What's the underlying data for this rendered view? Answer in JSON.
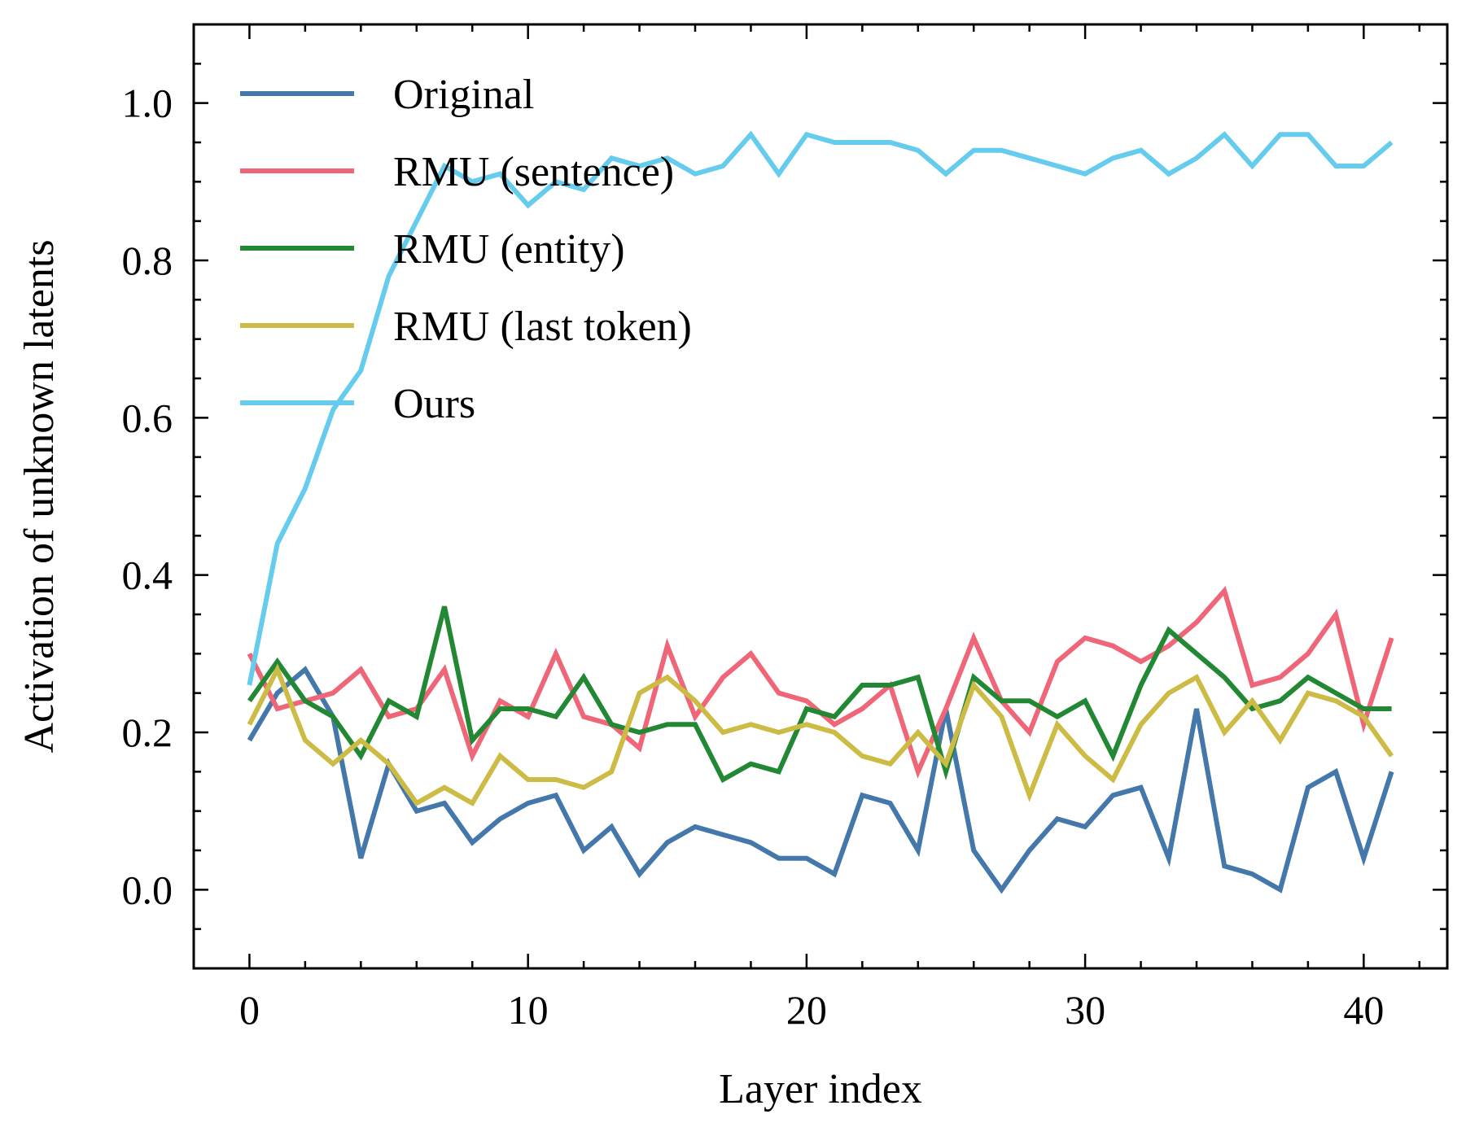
{
  "chart_data": {
    "type": "line",
    "title": "",
    "xlabel": "Layer index",
    "ylabel": "Activation of unknown latents",
    "xlim": [
      -2,
      43
    ],
    "ylim": [
      -0.1,
      1.1
    ],
    "x_ticks": [
      0,
      10,
      20,
      30,
      40
    ],
    "x_tick_labels": [
      "0",
      "10",
      "20",
      "30",
      "40"
    ],
    "y_ticks": [
      0.0,
      0.2,
      0.4,
      0.6,
      0.8,
      1.0
    ],
    "y_tick_labels": [
      "0.0",
      "0.2",
      "0.4",
      "0.6",
      "0.8",
      "1.0"
    ],
    "x_minor_step": 2,
    "y_minor_step": 0.05,
    "grid": false,
    "legend_position": "top-left",
    "x": [
      0,
      1,
      2,
      3,
      4,
      5,
      6,
      7,
      8,
      9,
      10,
      11,
      12,
      13,
      14,
      15,
      16,
      17,
      18,
      19,
      20,
      21,
      22,
      23,
      24,
      25,
      26,
      27,
      28,
      29,
      30,
      31,
      32,
      33,
      34,
      35,
      36,
      37,
      38,
      39,
      40,
      41
    ],
    "series": [
      {
        "name": "Original",
        "color": "#4477aa",
        "values": [
          0.19,
          0.25,
          0.28,
          0.22,
          0.04,
          0.16,
          0.1,
          0.11,
          0.06,
          0.09,
          0.11,
          0.12,
          0.05,
          0.08,
          0.02,
          0.06,
          0.08,
          0.07,
          0.06,
          0.04,
          0.04,
          0.02,
          0.12,
          0.11,
          0.05,
          0.23,
          0.05,
          0.0,
          0.05,
          0.09,
          0.08,
          0.12,
          0.13,
          0.04,
          0.23,
          0.03,
          0.02,
          0.0,
          0.13,
          0.15,
          0.04,
          0.15
        ]
      },
      {
        "name": "RMU (sentence)",
        "color": "#ee6677",
        "values": [
          0.3,
          0.23,
          0.24,
          0.25,
          0.28,
          0.22,
          0.23,
          0.28,
          0.17,
          0.24,
          0.22,
          0.3,
          0.22,
          0.21,
          0.18,
          0.31,
          0.22,
          0.27,
          0.3,
          0.25,
          0.24,
          0.21,
          0.23,
          0.26,
          0.15,
          0.23,
          0.32,
          0.24,
          0.2,
          0.29,
          0.32,
          0.31,
          0.29,
          0.31,
          0.34,
          0.38,
          0.26,
          0.27,
          0.3,
          0.35,
          0.21,
          0.32
        ]
      },
      {
        "name": "RMU (entity)",
        "color": "#228833",
        "values": [
          0.24,
          0.29,
          0.24,
          0.22,
          0.17,
          0.24,
          0.22,
          0.36,
          0.19,
          0.23,
          0.23,
          0.22,
          0.27,
          0.21,
          0.2,
          0.21,
          0.21,
          0.14,
          0.16,
          0.15,
          0.23,
          0.22,
          0.26,
          0.26,
          0.27,
          0.15,
          0.27,
          0.24,
          0.24,
          0.22,
          0.24,
          0.17,
          0.26,
          0.33,
          0.3,
          0.27,
          0.23,
          0.24,
          0.27,
          0.25,
          0.23,
          0.23
        ]
      },
      {
        "name": "RMU (last token)",
        "color": "#ccbb44",
        "values": [
          0.21,
          0.28,
          0.19,
          0.16,
          0.19,
          0.16,
          0.11,
          0.13,
          0.11,
          0.17,
          0.14,
          0.14,
          0.13,
          0.15,
          0.25,
          0.27,
          0.24,
          0.2,
          0.21,
          0.2,
          0.21,
          0.2,
          0.17,
          0.16,
          0.2,
          0.16,
          0.26,
          0.22,
          0.12,
          0.21,
          0.17,
          0.14,
          0.21,
          0.25,
          0.27,
          0.2,
          0.24,
          0.19,
          0.25,
          0.24,
          0.22,
          0.17
        ]
      },
      {
        "name": "Ours",
        "color": "#66ccee",
        "values": [
          0.26,
          0.44,
          0.51,
          0.61,
          0.66,
          0.78,
          0.85,
          0.92,
          0.9,
          0.91,
          0.87,
          0.9,
          0.89,
          0.93,
          0.92,
          0.93,
          0.91,
          0.92,
          0.96,
          0.91,
          0.96,
          0.95,
          0.95,
          0.95,
          0.94,
          0.91,
          0.94,
          0.94,
          0.93,
          0.92,
          0.91,
          0.93,
          0.94,
          0.91,
          0.93,
          0.96,
          0.92,
          0.96,
          0.96,
          0.92,
          0.92,
          0.95
        ]
      }
    ]
  }
}
